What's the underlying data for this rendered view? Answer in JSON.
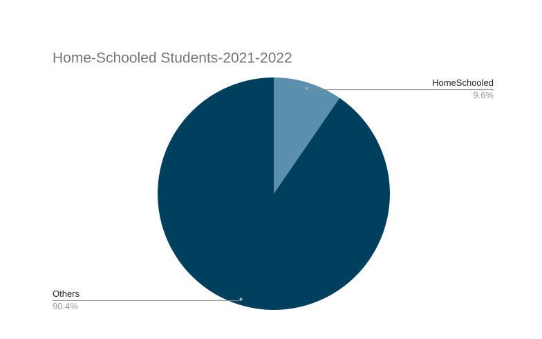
{
  "chart_data": {
    "type": "pie",
    "title": "Home-Schooled Students-2021-2022",
    "categories": [
      "HomeSchooled",
      "Others"
    ],
    "values": [
      9.6,
      90.4
    ],
    "value_labels": [
      "9.6%",
      "90.4%"
    ],
    "colors": [
      "#5a8fae",
      "#00405e"
    ]
  }
}
